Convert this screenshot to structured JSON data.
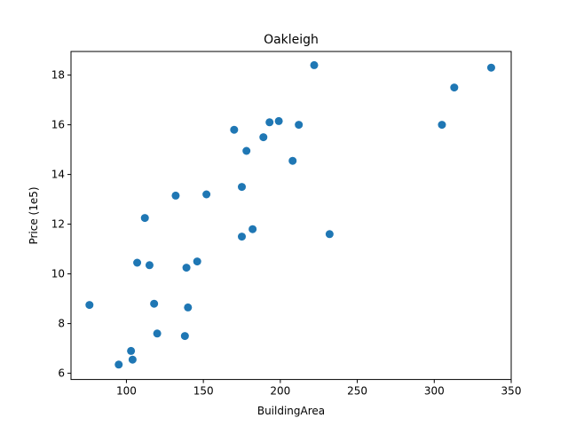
{
  "chart_data": {
    "type": "scatter",
    "title": "Oakleigh",
    "xlabel": "BuildingArea",
    "ylabel": "Price (1e5)",
    "xlim": [
      64,
      350
    ],
    "ylim": [
      5.75,
      18.95
    ],
    "xticks": [
      100,
      150,
      200,
      250,
      300,
      350
    ],
    "yticks": [
      6,
      8,
      10,
      12,
      14,
      16,
      18
    ],
    "grid": false,
    "marker_color": "#1f77b4",
    "series": [
      {
        "x": [
          76,
          95,
          103,
          104,
          107,
          112,
          115,
          118,
          120,
          132,
          138,
          139,
          140,
          146,
          152,
          170,
          175,
          175,
          178,
          182,
          189,
          193,
          199,
          208,
          212,
          222,
          232,
          305,
          313,
          337
        ],
        "y": [
          8.75,
          6.35,
          6.9,
          6.55,
          10.45,
          12.25,
          10.35,
          8.8,
          7.6,
          13.15,
          7.5,
          10.25,
          8.65,
          10.5,
          13.2,
          15.8,
          13.5,
          11.5,
          14.95,
          11.8,
          15.5,
          16.1,
          16.15,
          14.55,
          16.0,
          18.4,
          11.6,
          16.0,
          17.5,
          18.3
        ]
      }
    ]
  }
}
